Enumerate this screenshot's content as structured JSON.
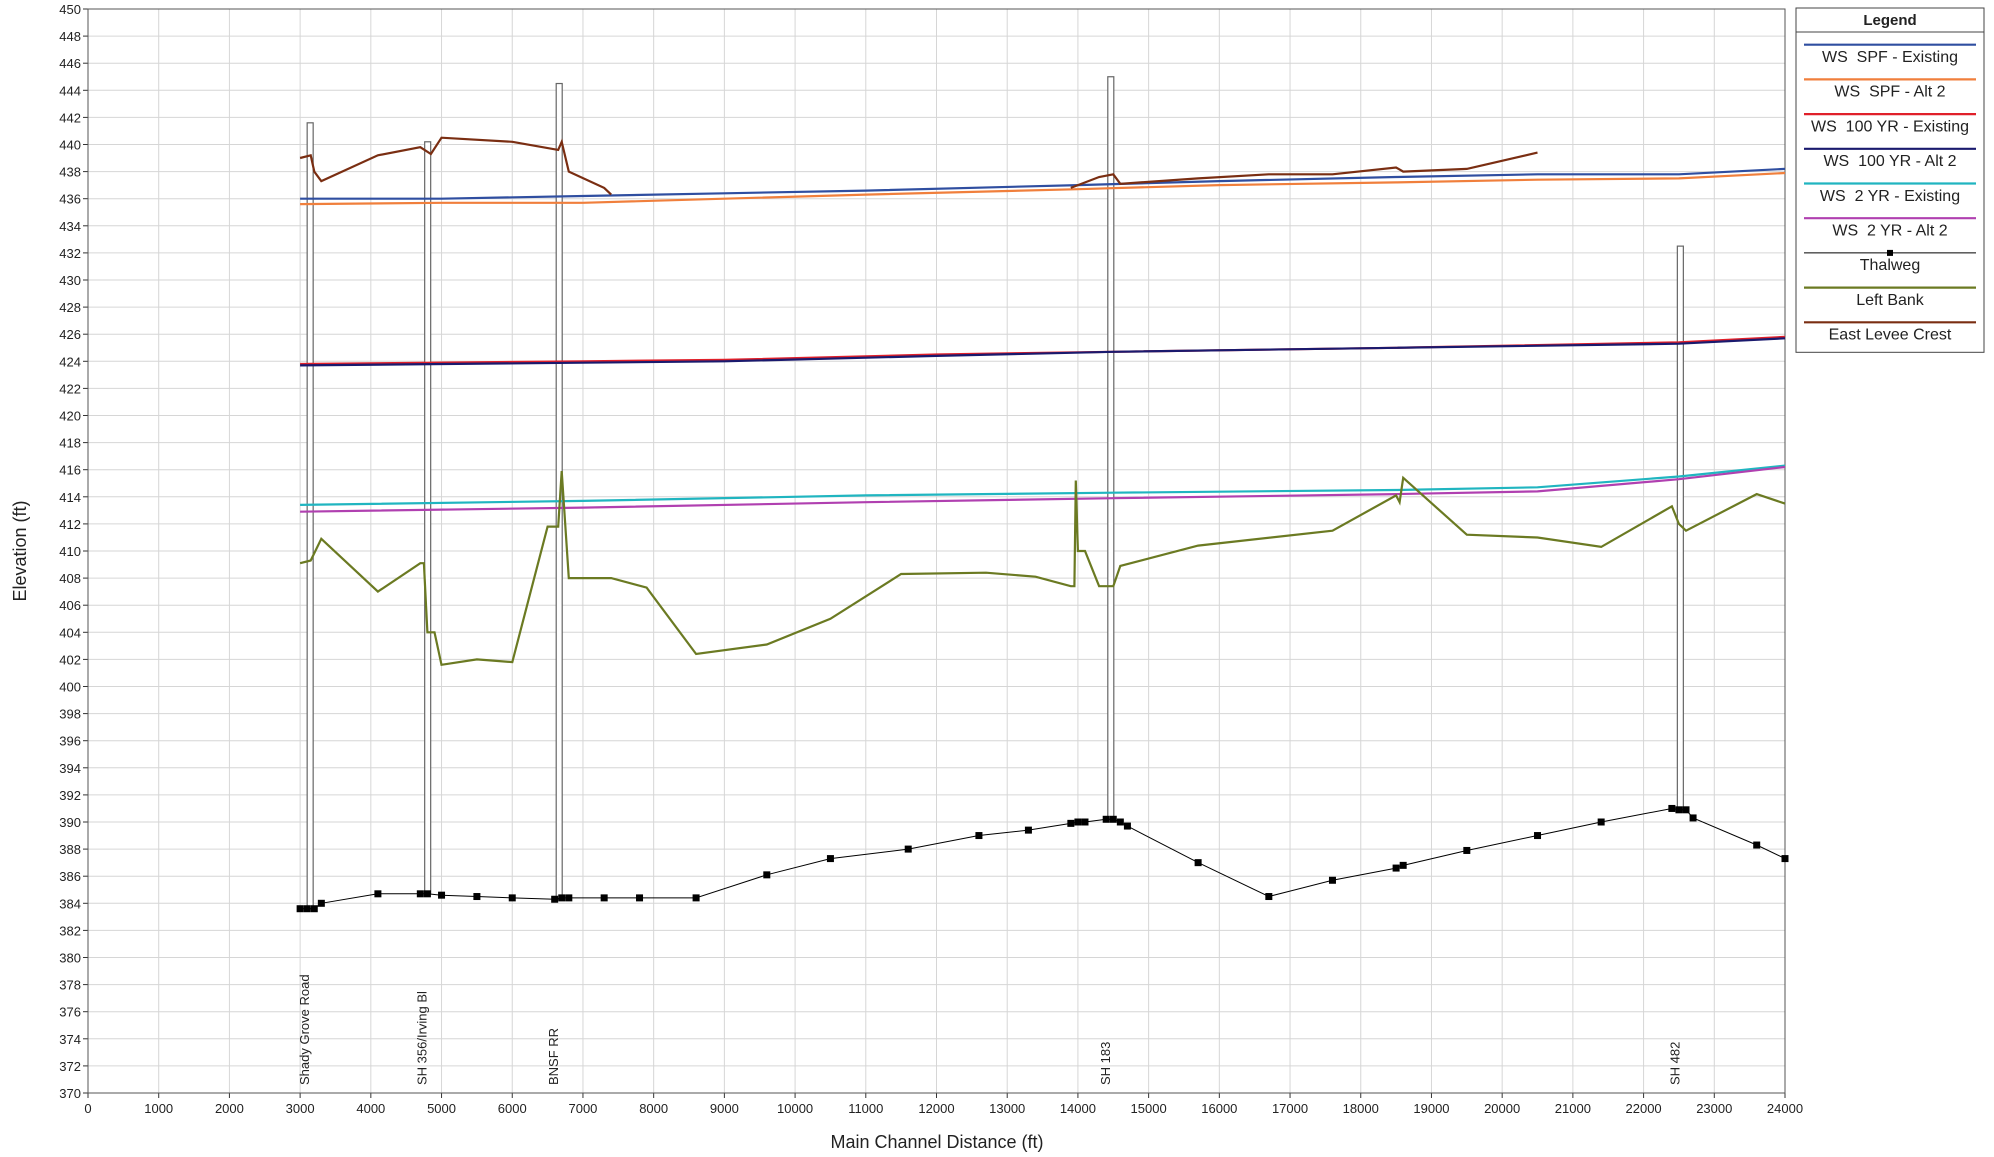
{
  "chart_data": {
    "type": "line",
    "xlabel": "Main Channel Distance (ft)",
    "ylabel": "Elevation (ft)",
    "legend_title": "Legend",
    "legend_position": "right",
    "grid": true,
    "xlim": [
      0,
      24000
    ],
    "ylim": [
      370,
      450
    ],
    "xticks": [
      0,
      1000,
      2000,
      3000,
      4000,
      5000,
      6000,
      7000,
      8000,
      9000,
      10000,
      11000,
      12000,
      13000,
      14000,
      15000,
      16000,
      17000,
      18000,
      19000,
      20000,
      21000,
      22000,
      23000,
      24000
    ],
    "yticks": [
      370,
      372,
      374,
      376,
      378,
      380,
      382,
      384,
      386,
      388,
      390,
      392,
      394,
      396,
      398,
      400,
      402,
      404,
      406,
      408,
      410,
      412,
      414,
      416,
      418,
      420,
      422,
      424,
      426,
      428,
      430,
      432,
      434,
      436,
      438,
      440,
      442,
      444,
      446,
      448,
      450
    ],
    "structures": [
      {
        "label": "Shady Grove Road",
        "x": 3142,
        "bottom": 383.6,
        "top": 441.6
      },
      {
        "label": "SH 356/Irving Bl",
        "x": 4804,
        "bottom": 384.7,
        "top": 440.2
      },
      {
        "label": "BNSF RR",
        "x": 6664,
        "bottom": 384.3,
        "top": 444.5
      },
      {
        "label": "SH 183",
        "x": 14465,
        "bottom": 390.2,
        "top": 445.0
      },
      {
        "label": "SH 482",
        "x": 22520,
        "bottom": 390.9,
        "top": 432.5
      }
    ],
    "series": [
      {
        "name": "WS  SPF - Existing",
        "color": "#2f4ea0",
        "x": [
          3000,
          5000,
          7000,
          9000,
          11000,
          14000,
          16000,
          18500,
          20500,
          22500,
          24000
        ],
        "values": [
          436.0,
          436.0,
          436.2,
          436.4,
          436.6,
          437.0,
          437.3,
          437.6,
          437.8,
          437.8,
          438.2
        ]
      },
      {
        "name": "WS  SPF - Alt 2",
        "color": "#f07f3c",
        "x": [
          3000,
          5000,
          7000,
          9000,
          11000,
          14000,
          16000,
          18500,
          20500,
          22500,
          24000
        ],
        "values": [
          435.6,
          435.7,
          435.7,
          436.0,
          436.3,
          436.7,
          437.0,
          437.2,
          437.4,
          437.5,
          437.9
        ]
      },
      {
        "name": "WS  100 YR - Existing",
        "color": "#e0202a",
        "x": [
          3000,
          7000,
          9000,
          12000,
          14500,
          18500,
          22500,
          24000
        ],
        "values": [
          423.8,
          424.0,
          424.1,
          424.5,
          424.7,
          425.0,
          425.4,
          425.8
        ]
      },
      {
        "name": "WS  100 YR - Alt 2",
        "color": "#1a1a6e",
        "x": [
          3000,
          7000,
          9000,
          12000,
          14500,
          18500,
          22500,
          24000
        ],
        "values": [
          423.7,
          423.9,
          424.0,
          424.4,
          424.7,
          425.0,
          425.3,
          425.7
        ]
      },
      {
        "name": "WS  2 YR - Existing",
        "color": "#20b5c0",
        "x": [
          3000,
          7000,
          11000,
          14500,
          18500,
          20500,
          22500,
          24000
        ],
        "values": [
          413.4,
          413.7,
          414.1,
          414.3,
          414.5,
          414.7,
          415.5,
          416.3
        ]
      },
      {
        "name": "WS  2 YR - Alt 2",
        "color": "#b040b0",
        "x": [
          3000,
          7000,
          11000,
          14500,
          18500,
          20500,
          22500,
          24000
        ],
        "values": [
          412.9,
          413.2,
          413.6,
          413.9,
          414.2,
          414.4,
          415.3,
          416.2
        ]
      },
      {
        "name": "Thalweg",
        "color": "#000000",
        "marker": "square",
        "x": [
          3000,
          3100,
          3200,
          3300,
          4100,
          4700,
          4800,
          5000,
          5500,
          6000,
          6600,
          6700,
          6800,
          7300,
          7800,
          8600,
          9600,
          10500,
          11600,
          12600,
          13300,
          13900,
          14000,
          14100,
          14400,
          14500,
          14600,
          14700,
          15700,
          16700,
          17600,
          18500,
          18600,
          19500,
          20500,
          21400,
          22400,
          22500,
          22600,
          22700,
          23600,
          24000
        ],
        "values": [
          383.6,
          383.6,
          383.6,
          384.0,
          384.7,
          384.7,
          384.7,
          384.6,
          384.5,
          384.4,
          384.3,
          384.4,
          384.4,
          384.4,
          384.4,
          384.4,
          386.1,
          387.3,
          388.0,
          389.0,
          389.4,
          389.9,
          390.0,
          390.0,
          390.2,
          390.2,
          390.0,
          389.7,
          387.0,
          384.5,
          385.7,
          386.6,
          386.8,
          387.9,
          389.0,
          390.0,
          391.0,
          390.9,
          390.9,
          390.3,
          388.3,
          387.3
        ]
      },
      {
        "name": "Left Bank",
        "color": "#6b7a22",
        "x": [
          3000,
          3150,
          3300,
          4100,
          4700,
          4750,
          4800,
          4900,
          5000,
          5500,
          6000,
          6500,
          6650,
          6700,
          6800,
          7400,
          7900,
          8600,
          9600,
          10500,
          11500,
          12700,
          13400,
          13900,
          13950,
          13970,
          14000,
          14100,
          14300,
          14500,
          14600,
          15700,
          17600,
          18500,
          18550,
          18600,
          19500,
          20500,
          21400,
          22400,
          22500,
          22600,
          23600,
          24000
        ],
        "values": [
          409.1,
          409.3,
          410.9,
          407.0,
          409.1,
          409.1,
          404.0,
          404.0,
          401.6,
          402.0,
          401.8,
          411.8,
          411.8,
          415.9,
          408.0,
          408.0,
          407.3,
          402.4,
          403.1,
          405.0,
          408.3,
          408.4,
          408.1,
          407.4,
          407.4,
          415.2,
          410.0,
          410.0,
          407.4,
          407.4,
          408.9,
          410.4,
          411.5,
          414.1,
          413.6,
          415.4,
          411.2,
          411.0,
          410.3,
          413.3,
          412.0,
          411.5,
          414.2,
          413.5
        ]
      },
      {
        "name": "East Levee Crest",
        "color": "#7a2e12",
        "x": [
          3000,
          3150,
          3200,
          3300,
          4100,
          4700,
          4850,
          5000,
          6000,
          6650,
          6700,
          6800,
          7300,
          7400,
          10000,
          13900,
          14300,
          14500,
          14600,
          15700,
          16700,
          17600,
          18500,
          18600,
          19500,
          20500
        ],
        "values": [
          439.0,
          439.2,
          438.0,
          437.3,
          439.2,
          439.8,
          439.3,
          440.5,
          440.2,
          439.6,
          440.2,
          438.0,
          436.8,
          436.3,
          null,
          436.8,
          437.6,
          437.8,
          437.1,
          437.5,
          437.8,
          437.8,
          438.3,
          438.0,
          438.2,
          439.4
        ]
      }
    ]
  }
}
